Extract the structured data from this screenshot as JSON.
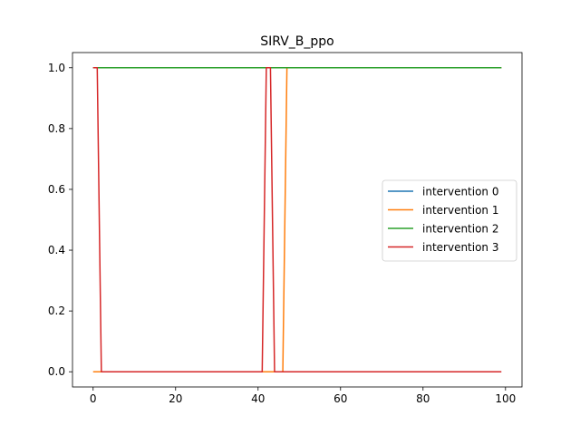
{
  "chart_data": {
    "type": "line",
    "title": "SIRV_B_ppo",
    "xlabel": "",
    "ylabel": "",
    "xlim": [
      -5.0,
      104.0
    ],
    "ylim": [
      -0.05,
      1.05
    ],
    "xticks": [
      0,
      20,
      40,
      60,
      80,
      100
    ],
    "yticks": [
      0.0,
      0.2,
      0.4,
      0.6,
      0.8,
      1.0
    ],
    "xtick_labels": [
      "0",
      "20",
      "40",
      "60",
      "80",
      "100"
    ],
    "ytick_labels": [
      "0.0",
      "0.2",
      "0.4",
      "0.6",
      "0.8",
      "1.0"
    ],
    "grid": false,
    "legend_position": "center-right",
    "series": [
      {
        "name": "intervention 0",
        "color": "#1f77b4",
        "x": [
          0,
          1,
          2,
          45,
          46,
          47,
          99
        ],
        "y": [
          1,
          1,
          1,
          1,
          1,
          1,
          1
        ]
      },
      {
        "name": "intervention 1",
        "color": "#ff7f0e",
        "x": [
          0,
          1,
          2,
          41,
          42,
          43,
          44,
          45,
          46,
          47,
          99
        ],
        "y": [
          0,
          0,
          0,
          0,
          0,
          0,
          0,
          0,
          0,
          1,
          1
        ]
      },
      {
        "name": "intervention 2",
        "color": "#2ca02c",
        "x": [
          0,
          1,
          2,
          45,
          46,
          47,
          99
        ],
        "y": [
          1,
          1,
          1,
          1,
          1,
          1,
          1
        ]
      },
      {
        "name": "intervention 3",
        "color": "#d62728",
        "x": [
          0,
          1,
          2,
          41,
          42,
          43,
          44,
          45,
          46,
          47,
          99
        ],
        "y": [
          1,
          1,
          0,
          0,
          1,
          1,
          0,
          0,
          0,
          0,
          0
        ]
      }
    ]
  }
}
